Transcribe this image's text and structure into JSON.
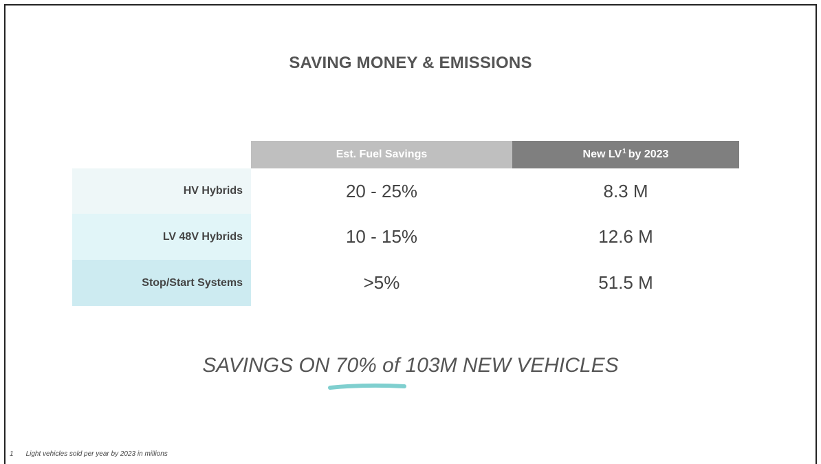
{
  "title": "SAVING MONEY & EMISSIONS",
  "table": {
    "header": [
      "Est. Fuel Savings",
      {
        "text": "New LV",
        "sup": "1",
        "rest": "by 2023"
      }
    ],
    "rows": [
      [
        "HV Hybrids",
        "20 - 25%",
        "8.3 M"
      ],
      [
        "LV 48V Hybrids",
        "10 - 15%",
        "12.6 M"
      ],
      [
        "Stop/Start Systems",
        ">5%",
        "51.5 M"
      ]
    ]
  },
  "statement": "SAVINGS ON 70% of 103M NEW VEHICLES",
  "footnote": {
    "marker": "1",
    "text": "Light vehicles sold per year by 2023 in millions"
  }
}
